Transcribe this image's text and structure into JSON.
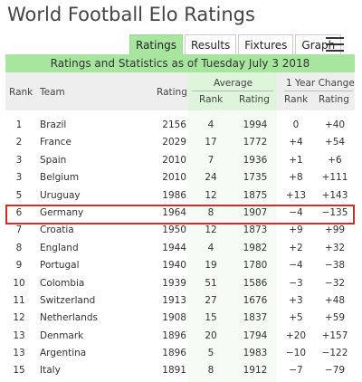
{
  "header": {
    "title": "World Football Elo Ratings"
  },
  "tabs": [
    {
      "label": "Ratings",
      "active": true
    },
    {
      "label": "Results",
      "active": false
    },
    {
      "label": "Fixtures",
      "active": false
    },
    {
      "label": "Graph",
      "active": false
    }
  ],
  "banner": {
    "text": "Ratings and Statistics as of Tuesday July 3 2018"
  },
  "table_header": {
    "rank": "Rank",
    "team": "Team",
    "rating": "Rating",
    "average": "Average",
    "average_rank": "Rank",
    "average_rating": "Rating",
    "change": "1 Year Change",
    "change_rank": "Rank",
    "change_rating": "Rating"
  },
  "rows": [
    {
      "rank": "1",
      "team": "Brazil",
      "rating": "2156",
      "avg_rank": "4",
      "avg_rating": "1994",
      "chg_rank": "0",
      "chg_rating": "+40"
    },
    {
      "rank": "2",
      "team": "France",
      "rating": "2029",
      "avg_rank": "17",
      "avg_rating": "1772",
      "chg_rank": "+4",
      "chg_rating": "+54"
    },
    {
      "rank": "3",
      "team": "Spain",
      "rating": "2010",
      "avg_rank": "7",
      "avg_rating": "1936",
      "chg_rank": "+1",
      "chg_rating": "+6"
    },
    {
      "rank": "3",
      "team": "Belgium",
      "rating": "2010",
      "avg_rank": "24",
      "avg_rating": "1735",
      "chg_rank": "+8",
      "chg_rating": "+111"
    },
    {
      "rank": "5",
      "team": "Uruguay",
      "rating": "1986",
      "avg_rank": "12",
      "avg_rating": "1875",
      "chg_rank": "+13",
      "chg_rating": "+143"
    },
    {
      "rank": "6",
      "team": "Germany",
      "rating": "1964",
      "avg_rank": "8",
      "avg_rating": "1907",
      "chg_rank": "−4",
      "chg_rating": "−135"
    },
    {
      "rank": "7",
      "team": "Croatia",
      "rating": "1950",
      "avg_rank": "12",
      "avg_rating": "1873",
      "chg_rank": "+9",
      "chg_rating": "+99"
    },
    {
      "rank": "8",
      "team": "England",
      "rating": "1944",
      "avg_rank": "4",
      "avg_rating": "1982",
      "chg_rank": "+2",
      "chg_rating": "+32"
    },
    {
      "rank": "9",
      "team": "Portugal",
      "rating": "1940",
      "avg_rank": "19",
      "avg_rating": "1780",
      "chg_rank": "−4",
      "chg_rating": "−38"
    },
    {
      "rank": "10",
      "team": "Colombia",
      "rating": "1939",
      "avg_rank": "51",
      "avg_rating": "1586",
      "chg_rank": "−3",
      "chg_rating": "−32"
    },
    {
      "rank": "11",
      "team": "Switzerland",
      "rating": "1913",
      "avg_rank": "27",
      "avg_rating": "1676",
      "chg_rank": "+3",
      "chg_rating": "+48"
    },
    {
      "rank": "12",
      "team": "Netherlands",
      "rating": "1908",
      "avg_rank": "15",
      "avg_rating": "1837",
      "chg_rank": "+5",
      "chg_rating": "+59"
    },
    {
      "rank": "13",
      "team": "Denmark",
      "rating": "1896",
      "avg_rank": "20",
      "avg_rating": "1794",
      "chg_rank": "+20",
      "chg_rating": "+157"
    },
    {
      "rank": "13",
      "team": "Argentina",
      "rating": "1896",
      "avg_rank": "5",
      "avg_rating": "1983",
      "chg_rank": "−10",
      "chg_rating": "−122"
    },
    {
      "rank": "15",
      "team": "Italy",
      "rating": "1891",
      "avg_rank": "8",
      "avg_rating": "1912",
      "chg_rank": "−7",
      "chg_rating": "−79"
    }
  ],
  "highlighted_team": "Germany",
  "colors": {
    "accent_green": "#a8e6a0",
    "highlight_border": "#d42a2a"
  }
}
